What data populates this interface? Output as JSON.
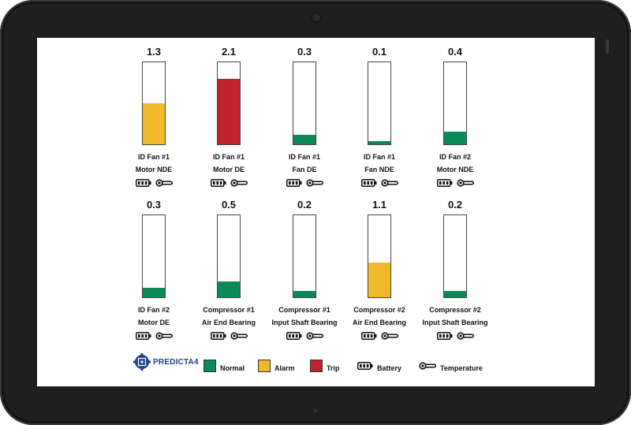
{
  "colors": {
    "normal": "#0b8a57",
    "alarm": "#f0b92a",
    "trip": "#c0232b"
  },
  "sensors": [
    {
      "reading": "1.3",
      "value": 1.3,
      "status": "alarm",
      "name": "ID Fan #1",
      "location": "Motor NDE"
    },
    {
      "reading": "2.1",
      "value": 2.1,
      "status": "trip",
      "name": "ID Fan #1",
      "location": "Motor DE"
    },
    {
      "reading": "0.3",
      "value": 0.3,
      "status": "normal",
      "name": "ID Fan #1",
      "location": "Fan DE"
    },
    {
      "reading": "0.1",
      "value": 0.1,
      "status": "normal",
      "name": "ID Fan #1",
      "location": "Fan NDE"
    },
    {
      "reading": "0.4",
      "value": 0.4,
      "status": "normal",
      "name": "ID Fan #2",
      "location": "Motor NDE"
    },
    {
      "reading": "0.3",
      "value": 0.3,
      "status": "normal",
      "name": "ID Fan #2",
      "location": "Motor DE"
    },
    {
      "reading": "0.5",
      "value": 0.5,
      "status": "normal",
      "name": "Compressor #1",
      "location": "Air End Bearing"
    },
    {
      "reading": "0.2",
      "value": 0.2,
      "status": "normal",
      "name": "Compressor #1",
      "location": "Input Shaft Bearing"
    },
    {
      "reading": "1.1",
      "value": 1.1,
      "status": "alarm",
      "name": "Compressor #2",
      "location": "Air End Bearing"
    },
    {
      "reading": "0.2",
      "value": 0.2,
      "status": "normal",
      "name": "Compressor #2",
      "location": "Input Shaft Bearing"
    }
  ],
  "gauge_max": 2.6,
  "legend": {
    "brand": "PREDICTA4",
    "normal": "Normal",
    "alarm": "Alarm",
    "trip": "Trip",
    "battery": "Battery",
    "temperature": "Temperature"
  }
}
